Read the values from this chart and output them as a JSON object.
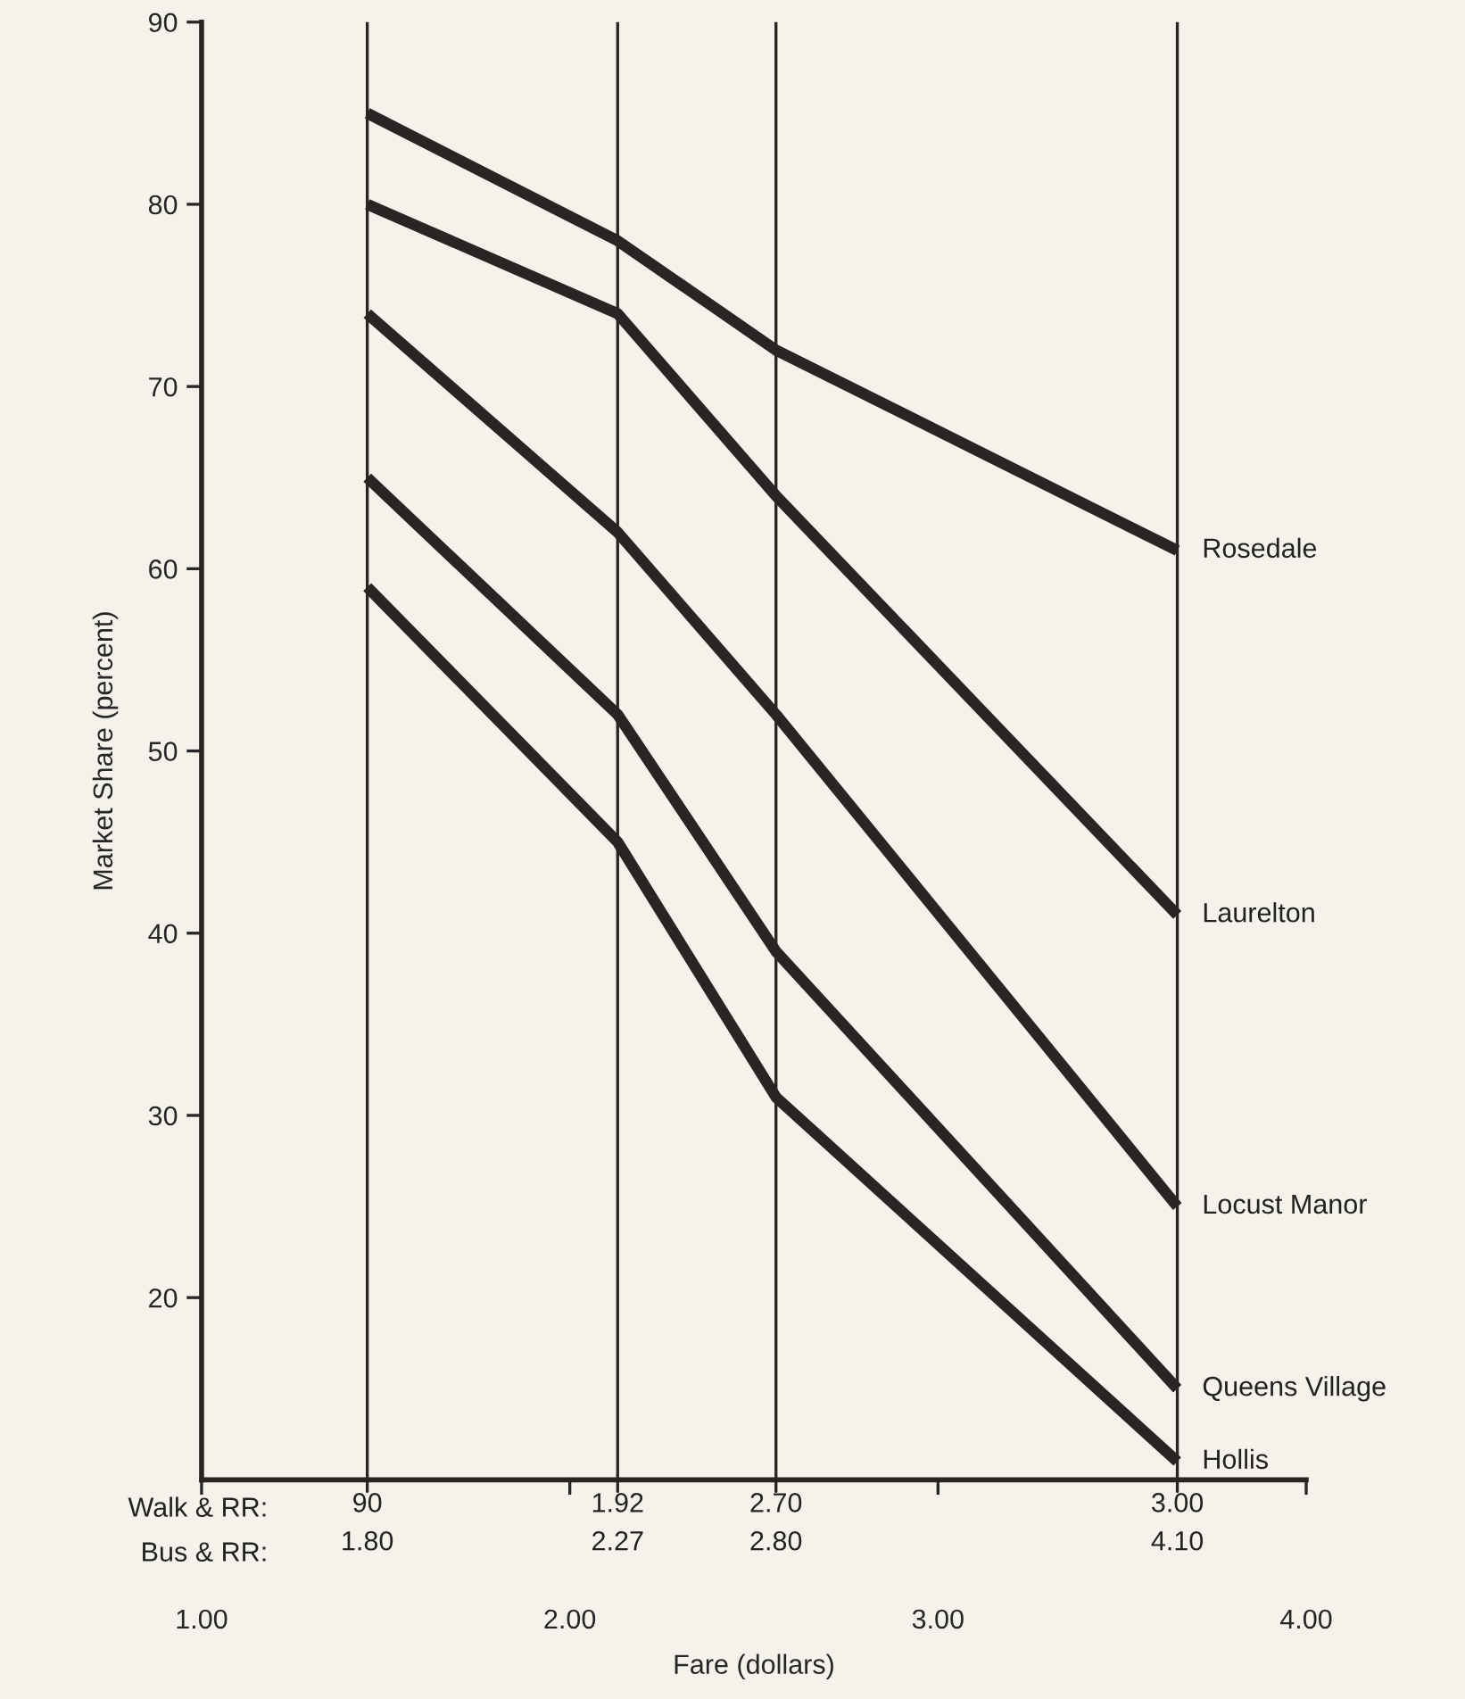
{
  "chart_data": {
    "type": "line",
    "xlabel": "Fare (dollars)",
    "ylabel": "Market Share (percent)",
    "x": [
      1.45,
      2.13,
      2.56,
      3.65
    ],
    "series": [
      {
        "name": "Rosedale",
        "color": "#2a2424",
        "values": [
          85,
          78,
          72,
          61
        ]
      },
      {
        "name": "Laurelton",
        "color": "#2a2424",
        "values": [
          80,
          74,
          64,
          41
        ]
      },
      {
        "name": "Locust Manor",
        "color": "#2a2424",
        "values": [
          74,
          62,
          52,
          25
        ]
      },
      {
        "name": "Queens Village",
        "color": "#2a2424",
        "values": [
          65,
          52,
          39,
          15
        ]
      },
      {
        "name": "Hollis",
        "color": "#2a2424",
        "values": [
          59,
          45,
          31,
          11
        ]
      }
    ],
    "xlim": [
      1.0,
      4.0
    ],
    "xticks": [
      {
        "value": 1.0,
        "label": "1.00"
      },
      {
        "value": 2.0,
        "label": "2.00"
      },
      {
        "value": 3.0,
        "label": "3.00"
      },
      {
        "value": 4.0,
        "label": "4.00"
      }
    ],
    "ylim": [
      10,
      90
    ],
    "yticks": [
      20,
      30,
      40,
      50,
      60,
      70,
      80,
      90
    ],
    "ref_lines": [
      {
        "axis": "x",
        "value": 1.45,
        "color": "#2a2424"
      },
      {
        "axis": "x",
        "value": 2.13,
        "color": "#2a2424"
      },
      {
        "axis": "x",
        "value": 2.56,
        "color": "#2a2424"
      },
      {
        "axis": "x",
        "value": 3.65,
        "color": "#2a2424"
      }
    ],
    "annotations": [
      "Walk & RR:",
      "Bus & RR:",
      {
        "text": "90\n1.80",
        "x": 1.45
      },
      {
        "text": "1.92\n2.27",
        "x": 2.13
      },
      {
        "text": "2.70\n2.80",
        "x": 2.56
      },
      {
        "text": "3.00\n4.10",
        "x": 3.65
      }
    ],
    "grid": false,
    "legend": false,
    "marker": "none",
    "line_style": "solid"
  }
}
